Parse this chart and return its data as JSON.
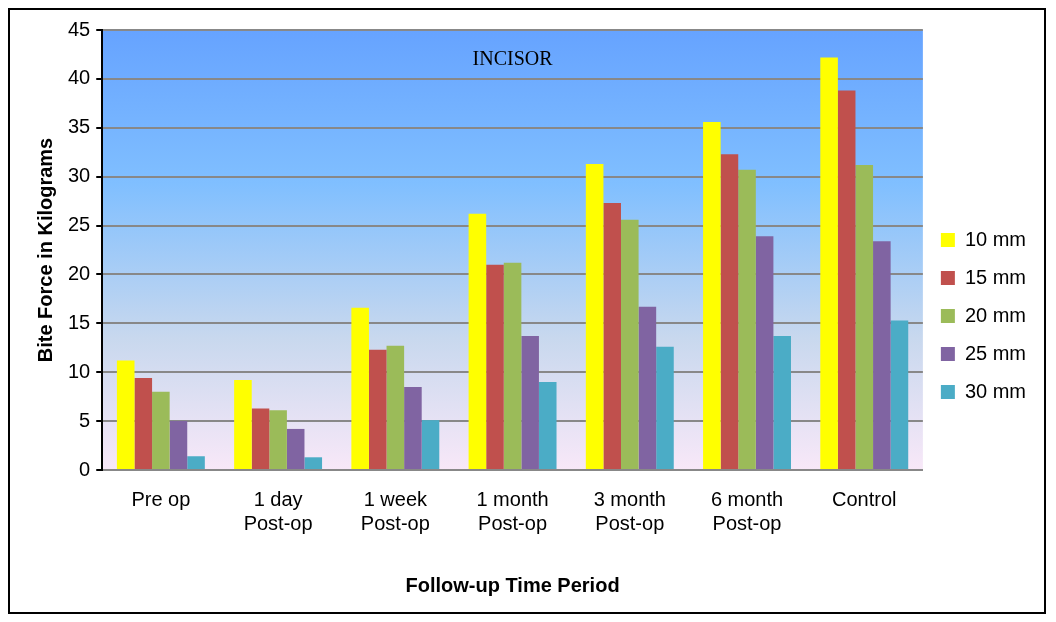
{
  "chart_data": {
    "type": "bar",
    "title": "INCISOR",
    "xlabel": "Follow-up Time Period",
    "ylabel": "Bite Force in Kilograms",
    "categories": [
      "Pre op",
      "1 day\nPost-op",
      "1 week\nPost-op",
      "1 month\nPost-op",
      "3 month\nPost-op",
      "6 month\nPost-op",
      "Control"
    ],
    "series": [
      {
        "name": "10 mm",
        "color": "#ffff00",
        "values": [
          11.2,
          9.2,
          16.6,
          26.2,
          31.3,
          35.6,
          42.2
        ]
      },
      {
        "name": "15 mm",
        "color": "#c0504d",
        "values": [
          9.4,
          6.3,
          12.3,
          21.0,
          27.3,
          32.3,
          38.8
        ]
      },
      {
        "name": "20 mm",
        "color": "#9bbb59",
        "values": [
          8.0,
          6.1,
          12.7,
          21.2,
          25.6,
          30.7,
          31.2
        ]
      },
      {
        "name": "25 mm",
        "color": "#8064a2",
        "values": [
          5.0,
          4.2,
          8.5,
          13.7,
          16.7,
          23.9,
          23.4
        ]
      },
      {
        "name": "30 mm",
        "color": "#4bacc6",
        "values": [
          1.4,
          1.3,
          5.1,
          9.0,
          12.6,
          13.7,
          15.3
        ]
      }
    ],
    "ylim": [
      0,
      45
    ],
    "yticks": [
      0,
      5,
      10,
      15,
      20,
      25,
      30,
      35,
      40,
      45
    ],
    "grid": "y",
    "legend": "right"
  }
}
